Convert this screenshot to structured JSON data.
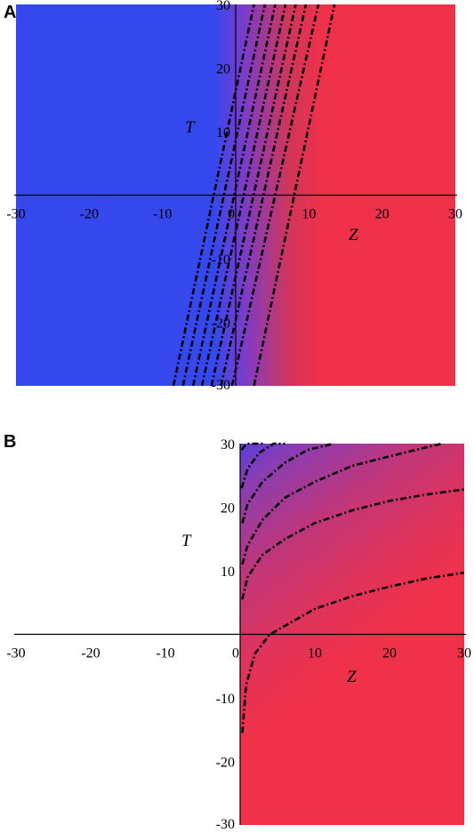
{
  "colors": {
    "low": "#3448EE",
    "high": "#F0314A"
  },
  "chart_data": [
    {
      "type": "contour",
      "panel_label": "A",
      "xlabel": "Z",
      "ylabel": "T",
      "xlim": [
        -30,
        30
      ],
      "ylim": [
        -30,
        30
      ],
      "xticks": [
        "-30",
        "-20",
        "-10",
        "0",
        "10",
        "20",
        "30"
      ],
      "yticks": [
        "-30",
        "-20",
        "-10",
        "10",
        "20",
        "30"
      ],
      "colormap": "blue (left) to red (right)",
      "contours": [
        {
          "x": [
            -8.5,
            2.5
          ],
          "y": [
            -30,
            30
          ]
        },
        {
          "x": [
            -7.2,
            4.0
          ],
          "y": [
            -30,
            30
          ]
        },
        {
          "x": [
            -5.8,
            5.4
          ],
          "y": [
            -30,
            30
          ]
        },
        {
          "x": [
            -4.6,
            6.8
          ],
          "y": [
            -30,
            30
          ]
        },
        {
          "x": [
            -3.3,
            8.2
          ],
          "y": [
            -30,
            30
          ]
        },
        {
          "x": [
            -2.0,
            9.6
          ],
          "y": [
            -30,
            30
          ]
        },
        {
          "x": [
            -0.5,
            11.3
          ],
          "y": [
            -30,
            30
          ]
        },
        {
          "x": [
            2.5,
            13.5
          ],
          "y": [
            -30,
            30
          ]
        }
      ]
    },
    {
      "type": "contour",
      "panel_label": "B",
      "xlabel": "Z",
      "ylabel": "T",
      "xlim": [
        -30,
        30
      ],
      "ylim": [
        -30,
        30
      ],
      "xticks": [
        "-30",
        "-20",
        "-10",
        "0",
        "10",
        "20",
        "30"
      ],
      "yticks": [
        "-30",
        "-20",
        "-10",
        "10",
        "20",
        "30"
      ],
      "domain_z_min": 0,
      "colormap": "blue (top-left) to red (bottom-right)",
      "contours": [
        {
          "x": [
            0.2,
            0.5,
            1.0,
            2.0,
            3.3
          ],
          "y": [
            29.0,
            29.5,
            30,
            30,
            30
          ],
          "z_start": 0.2
        },
        {
          "x": [
            0.2,
            1.0,
            2.5,
            4.5,
            6.0
          ],
          "y": [
            23.0,
            26.0,
            28.5,
            30,
            30
          ]
        },
        {
          "x": [
            0.3,
            1.0,
            3.0,
            6.0,
            9.0,
            12.5
          ],
          "y": [
            17.5,
            20.5,
            24.0,
            27.0,
            29.0,
            30
          ]
        },
        {
          "x": [
            0.3,
            1.0,
            3.0,
            6.0,
            10.0,
            15.0,
            20.0,
            27.0
          ],
          "y": [
            11.0,
            14.0,
            18.0,
            21.5,
            24.0,
            26.5,
            28.0,
            30
          ]
        },
        {
          "x": [
            0.3,
            1.0,
            3.0,
            6.0,
            10.0,
            15.0,
            20.0,
            25.0,
            30.0
          ],
          "y": [
            5.5,
            9.0,
            12.5,
            15.0,
            17.5,
            19.5,
            21.0,
            22.0,
            22.8
          ]
        },
        {
          "x": [
            0.3,
            0.8,
            2.0,
            4.0,
            7.0,
            10.0,
            15.0,
            20.0,
            25.0,
            30.0
          ],
          "y": [
            -15.5,
            -8.0,
            -3.0,
            0.0,
            2.0,
            4.0,
            6.0,
            7.5,
            8.8,
            9.7
          ]
        }
      ]
    }
  ]
}
